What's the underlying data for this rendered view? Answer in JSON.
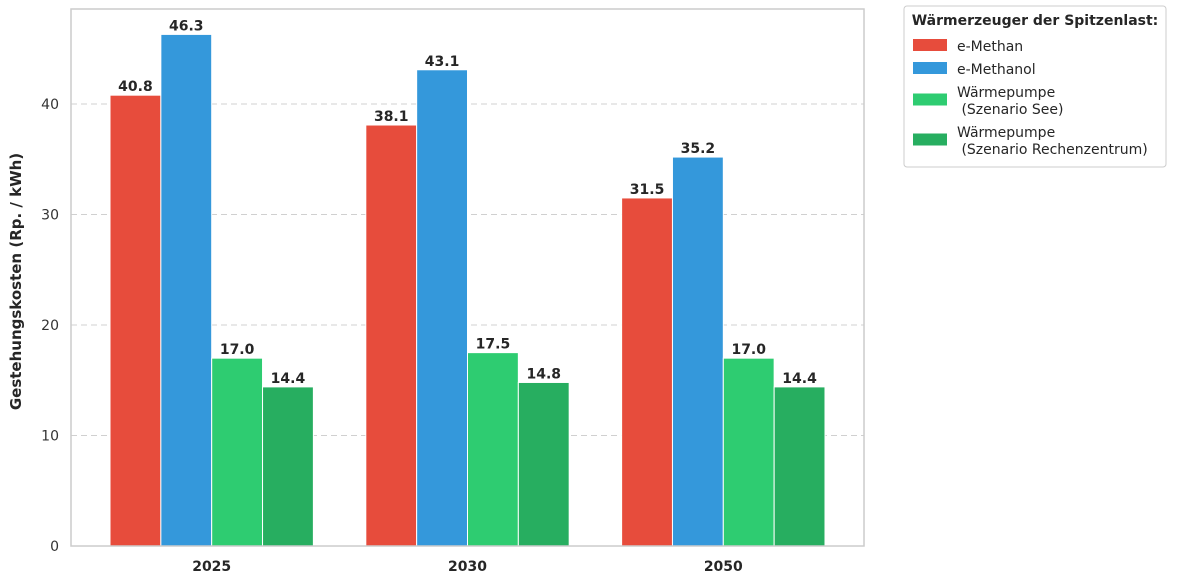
{
  "chart_data": {
    "type": "bar",
    "categories": [
      "2025",
      "2030",
      "2050"
    ],
    "series": [
      {
        "name": "e-Methan",
        "color": "#e74c3c",
        "values": [
          40.8,
          38.1,
          31.5
        ]
      },
      {
        "name": "e-Methanol",
        "color": "#3498db",
        "values": [
          46.3,
          43.1,
          35.2
        ]
      },
      {
        "name": "Wärmepumpe\n (Szenario See)",
        "color": "#2ecc71",
        "values": [
          17.0,
          17.5,
          17.0
        ]
      },
      {
        "name": "Wärmepumpe\n (Szenario Rechenzentrum)",
        "color": "#27ae60",
        "values": [
          14.4,
          14.8,
          14.4
        ]
      }
    ],
    "ylabel": "Gestehungskosten (Rp. / kWh)",
    "xlabel": "",
    "ylim": [
      0,
      48.6
    ],
    "yticks": [
      0,
      10,
      20,
      30,
      40
    ],
    "grid": true,
    "legend": {
      "title": "Wärmerzeuger der Spitzenlast:",
      "placement": "outside-top-right"
    }
  }
}
